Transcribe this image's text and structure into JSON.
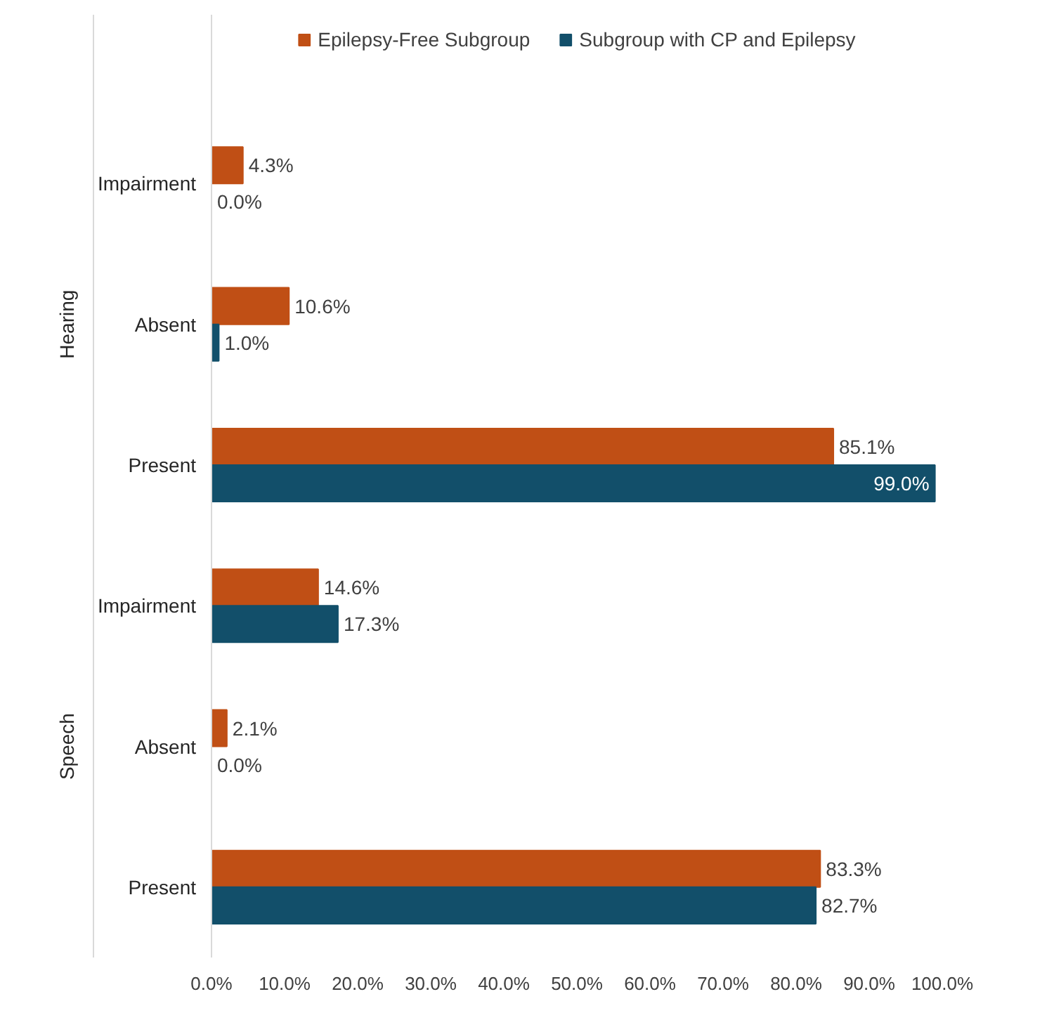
{
  "chart_data": {
    "type": "bar",
    "orientation": "horizontal",
    "categories": [
      "Impairment",
      "Absent",
      "Present",
      "Impairment",
      "Absent",
      "Present"
    ],
    "series": [
      {
        "name": "Epilepsy-Free Subgroup",
        "color": "#c04f15",
        "values": [
          4.3,
          10.6,
          85.1,
          14.6,
          2.1,
          83.3
        ],
        "value_labels": [
          "4.3%",
          "10.6%",
          "85.1%",
          "14.6%",
          "2.1%",
          "83.3%"
        ]
      },
      {
        "name": "Subgroup with CP and Epilepsy",
        "color": "#124f6a",
        "values": [
          0.0,
          1.0,
          99.0,
          17.3,
          0.0,
          82.7
        ],
        "value_labels": [
          "0.0%",
          "1.0%",
          "99.0%",
          "17.3%",
          "0.0%",
          "82.7%"
        ]
      }
    ],
    "annotations": [
      "Hearing",
      "Speech"
    ],
    "xlim": [
      0,
      100
    ],
    "xticks": [
      {
        "value": 0,
        "label": "0.0%"
      },
      {
        "value": 10,
        "label": "10.0%"
      },
      {
        "value": 20,
        "label": "20.0%"
      },
      {
        "value": 30,
        "label": "30.0%"
      },
      {
        "value": 40,
        "label": "40.0%"
      },
      {
        "value": 50,
        "label": "50.0%"
      },
      {
        "value": 60,
        "label": "60.0%"
      },
      {
        "value": 70,
        "label": "70.0%"
      },
      {
        "value": 80,
        "label": "80.0%"
      },
      {
        "value": 90,
        "label": "90.0%"
      },
      {
        "value": 100,
        "label": "100.0%"
      }
    ],
    "grid": false,
    "legend": "top"
  }
}
